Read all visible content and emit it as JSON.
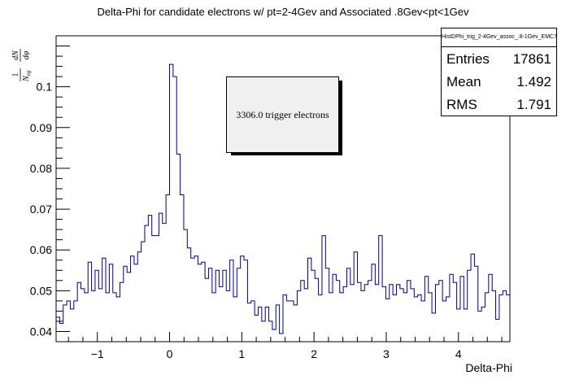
{
  "chart_data": {
    "type": "line",
    "style": "histogram-step",
    "title": "Delta-Phi for candidate electrons w/ pt=2-4Gev and Associated .8Gev<pt<1Gev",
    "xlabel": "Delta-Phi",
    "ylabel": {
      "numerator": "1",
      "denominator": "N",
      "denominator_sub": "eg",
      "derivative_num": "dN",
      "derivative_den": "dφ"
    },
    "xlim": [
      -1.571,
      4.712
    ],
    "ylim": [
      0.0375,
      0.1125
    ],
    "xticks": [
      -1,
      0,
      1,
      2,
      3,
      4
    ],
    "xtick_labels": [
      "−1",
      "0",
      "1",
      "2",
      "3",
      "4"
    ],
    "yticks": [
      0.04,
      0.05,
      0.06,
      0.07,
      0.08,
      0.09,
      0.1
    ],
    "ytick_labels": [
      "0.04",
      "0.05",
      "0.06",
      "0.07",
      "0.08",
      "0.09",
      "0.1"
    ],
    "grid": false,
    "line_color": "#000080",
    "bin_range": [
      -1.571,
      4.712
    ],
    "values": [
      0.0435,
      0.042,
      0.0465,
      0.0475,
      0.0455,
      0.0475,
      0.052,
      0.0505,
      0.0495,
      0.057,
      0.05,
      0.055,
      0.0505,
      0.058,
      0.0495,
      0.0565,
      0.0495,
      0.0485,
      0.052,
      0.056,
      0.0545,
      0.0585,
      0.0565,
      0.0595,
      0.062,
      0.066,
      0.0685,
      0.0635,
      0.0635,
      0.069,
      0.0665,
      0.0735,
      0.1055,
      0.1025,
      0.0835,
      0.0735,
      0.065,
      0.0605,
      0.058,
      0.0585,
      0.0565,
      0.057,
      0.053,
      0.0555,
      0.0495,
      0.055,
      0.051,
      0.055,
      0.05,
      0.0575,
      0.0485,
      0.0555,
      0.0585,
      0.0575,
      0.047,
      0.0475,
      0.044,
      0.046,
      0.0425,
      0.046,
      0.0425,
      0.0405,
      0.0465,
      0.0395,
      0.049,
      0.0475,
      0.0475,
      0.0465,
      0.05,
      0.0525,
      0.0505,
      0.058,
      0.055,
      0.053,
      0.049,
      0.0635,
      0.0555,
      0.0495,
      0.054,
      0.0525,
      0.0495,
      0.051,
      0.0555,
      0.0515,
      0.0595,
      0.052,
      0.05,
      0.0515,
      0.0525,
      0.0565,
      0.0515,
      0.0635,
      0.051,
      0.048,
      0.0515,
      0.049,
      0.0515,
      0.0505,
      0.0495,
      0.0525,
      0.0505,
      0.0485,
      0.049,
      0.0475,
      0.0535,
      0.0495,
      0.0445,
      0.0515,
      0.0525,
      0.0475,
      0.0485,
      0.054,
      0.052,
      0.0455,
      0.0535,
      0.0455,
      0.055,
      0.059,
      0.056,
      0.045,
      0.046,
      0.0495,
      0.054,
      0.05,
      0.043,
      0.049,
      0.05,
      0.049
    ],
    "stats_box": {
      "name": "HistDPhi_trig_2-4Gev_assoc_.8-1Gev_EMC7",
      "rows": [
        {
          "label": "Entries",
          "value": "17861"
        },
        {
          "label": "Mean",
          "value": "1.492"
        },
        {
          "label": "RMS",
          "value": "1.791"
        }
      ]
    },
    "annotation": "3306.0 trigger electrons"
  }
}
